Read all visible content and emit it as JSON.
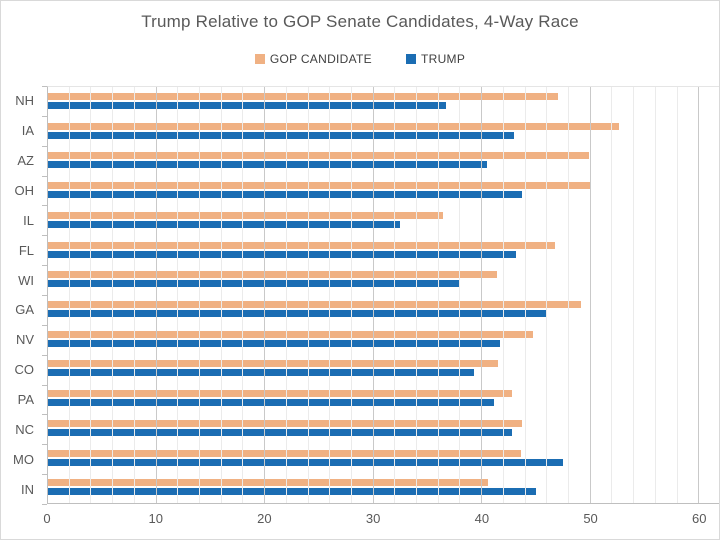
{
  "chart_data": {
    "type": "bar",
    "orientation": "horizontal",
    "title": "Trump Relative to GOP Senate Candidates, 4-Way Race",
    "categories": [
      "NH",
      "IA",
      "AZ",
      "OH",
      "IL",
      "FL",
      "WI",
      "GA",
      "NV",
      "CO",
      "PA",
      "NC",
      "MO",
      "IN"
    ],
    "series": [
      {
        "name": "GOP CANDIDATE",
        "color": "#f0b183",
        "values": [
          47.0,
          52.6,
          49.8,
          50.0,
          36.4,
          46.7,
          41.4,
          49.1,
          44.7,
          41.5,
          42.7,
          43.7,
          43.6,
          40.5
        ]
      },
      {
        "name": "TRUMP",
        "color": "#1b6db3",
        "values": [
          36.7,
          42.9,
          40.4,
          43.7,
          32.4,
          43.1,
          38.0,
          45.9,
          41.6,
          39.2,
          41.1,
          42.7,
          47.4,
          45.0
        ]
      }
    ],
    "xlim": [
      0,
      62
    ],
    "x_ticks": [
      0,
      10,
      20,
      30,
      40,
      50,
      60
    ],
    "minor_grid_unit": 2,
    "major_grid_unit": 10,
    "grid": "vertical",
    "legend_position": "top"
  },
  "colors": {
    "title_text": "#595959",
    "axis_text": "#595959",
    "legend_text": "#404040",
    "major_gridline": "#c9c9c9",
    "minor_gridline": "#ebebeb",
    "axis_line": "#bfbfbf",
    "background": "#ffffff"
  }
}
